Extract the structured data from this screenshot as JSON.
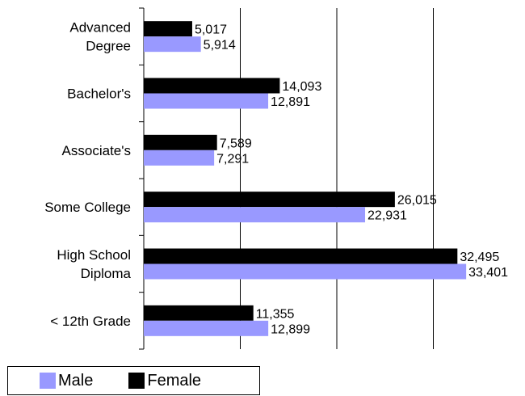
{
  "chart_data": {
    "type": "bar",
    "orientation": "horizontal",
    "categories": [
      "Advanced Degree",
      "Bachelor's",
      "Associate's",
      "Some College",
      "High School Diploma",
      "< 12th Grade"
    ],
    "category_lines": [
      [
        "Advanced",
        "Degree"
      ],
      [
        "Bachelor's"
      ],
      [
        "Associate's"
      ],
      [
        "Some College"
      ],
      [
        "High School",
        "Diploma"
      ],
      [
        "< 12th Grade"
      ]
    ],
    "series": [
      {
        "name": "Female",
        "color": "#000000",
        "values": [
          5017,
          14093,
          7589,
          26015,
          32495,
          11355
        ],
        "labels": [
          "5,017",
          "14,093",
          "7,589",
          "26,015",
          "32,495",
          "11,355"
        ]
      },
      {
        "name": "Male",
        "color": "#9999ff",
        "values": [
          5914,
          12891,
          7291,
          22931,
          33401,
          12899
        ],
        "labels": [
          "5,914",
          "12,891",
          "7,291",
          "22,931",
          "33,401",
          "12,899"
        ]
      }
    ],
    "xlim": [
      0,
      40000
    ],
    "grid": "vertical",
    "legend": "bottom-left"
  },
  "legend": {
    "male_label": "Male",
    "female_label": "Female"
  }
}
